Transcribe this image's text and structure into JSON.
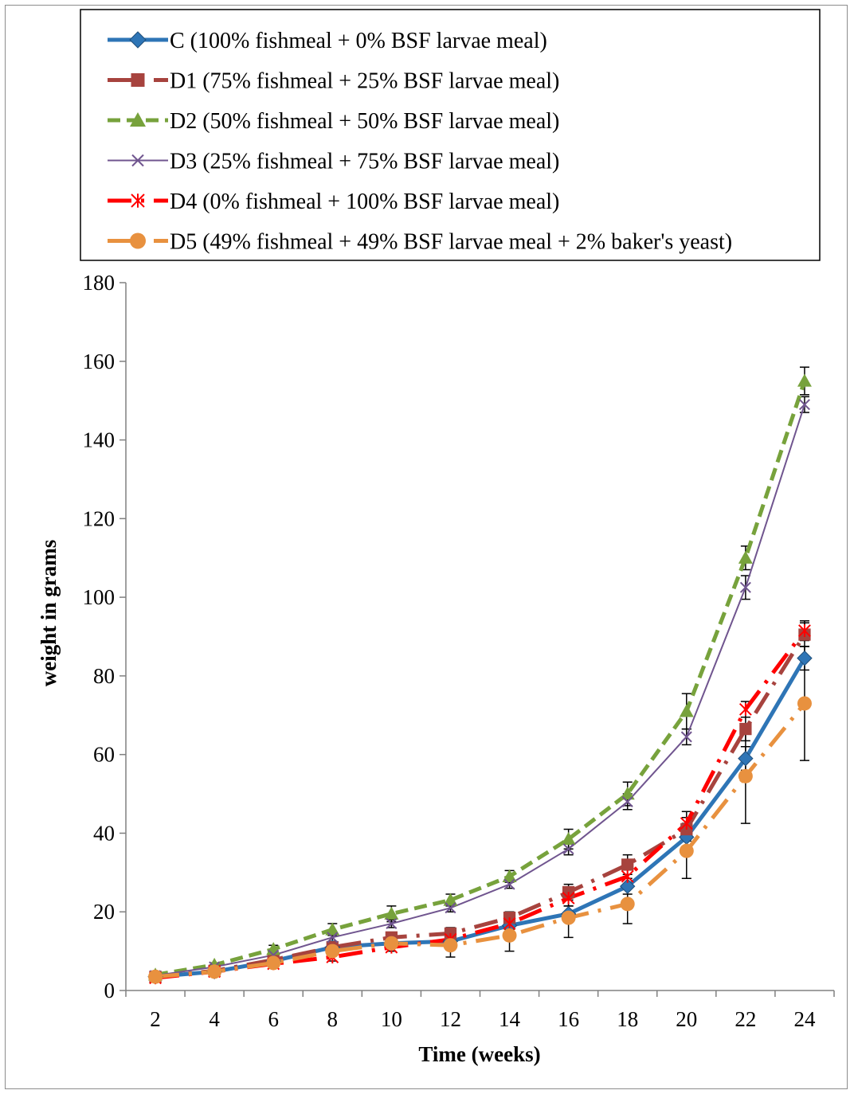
{
  "chart_data": {
    "type": "line",
    "title": "",
    "xlabel": "Time (weeks)",
    "ylabel": "weight in grams",
    "x": [
      2,
      4,
      6,
      8,
      10,
      12,
      14,
      16,
      18,
      20,
      22,
      24
    ],
    "ylim": [
      0,
      180
    ],
    "yticks": [
      0,
      20,
      40,
      60,
      80,
      100,
      120,
      140,
      160,
      180
    ],
    "grid": false,
    "legend_position": "top",
    "series": [
      {
        "name": "C (100% fishmeal + 0% BSF larvae meal)",
        "color": "#2e75b6",
        "marker": "diamond",
        "dash": "solid",
        "values": [
          3.5,
          4.8,
          7.5,
          11.0,
          12.0,
          12.5,
          16.5,
          19.5,
          26.5,
          39.0,
          59.0,
          84.5
        ],
        "error": [
          0.5,
          0.5,
          0.5,
          1.0,
          1.0,
          1.0,
          1.5,
          2.0,
          2.0,
          3.0,
          3.0,
          3.0
        ]
      },
      {
        "name": "D1 (75% fishmeal + 25% BSF larvae meal)",
        "color": "#a7433e",
        "marker": "square",
        "dash": "long-dash-dot",
        "values": [
          3.5,
          5.0,
          7.8,
          11.0,
          13.5,
          14.5,
          18.5,
          25.0,
          32.0,
          41.0,
          66.5,
          90.5
        ],
        "error": [
          0.5,
          0.5,
          0.5,
          1.0,
          1.0,
          1.5,
          1.5,
          2.0,
          2.5,
          3.0,
          3.0,
          3.0
        ]
      },
      {
        "name": "D2 (50% fishmeal + 50% BSF larvae meal)",
        "color": "#77a23c",
        "marker": "triangle",
        "dash": "dashed",
        "values": [
          4.0,
          6.5,
          10.5,
          15.5,
          19.5,
          23.0,
          29.0,
          38.5,
          50.0,
          71.0,
          110.0,
          155.0
        ],
        "error": [
          0.5,
          0.5,
          1.0,
          1.5,
          2.0,
          1.5,
          1.5,
          2.5,
          3.0,
          4.5,
          3.0,
          3.5
        ]
      },
      {
        "name": "D3 (25% fishmeal + 75% BSF larvae meal)",
        "color": "#70558f",
        "marker": "x",
        "dash": "solid-thin",
        "values": [
          3.8,
          6.0,
          9.0,
          13.5,
          17.0,
          21.0,
          27.0,
          36.0,
          48.0,
          64.5,
          102.5,
          149.0
        ],
        "error": [
          0.5,
          0.5,
          0.5,
          1.0,
          1.0,
          1.0,
          1.0,
          1.5,
          2.0,
          2.0,
          3.0,
          2.0
        ]
      },
      {
        "name": "D4 (0% fishmeal + 100% BSF larvae meal)",
        "color": "#ff0000",
        "marker": "star",
        "dash": "long-dash-dot",
        "values": [
          3.2,
          4.8,
          6.8,
          8.5,
          11.0,
          13.0,
          17.0,
          23.5,
          29.0,
          42.5,
          71.5,
          91.5
        ],
        "error": [
          0.5,
          0.5,
          0.5,
          1.0,
          1.0,
          1.0,
          1.5,
          2.0,
          2.0,
          3.0,
          2.0,
          2.5
        ]
      },
      {
        "name": "D5 (49% fishmeal + 49% BSF larvae meal + 2% baker's yeast)",
        "color": "#e8913f",
        "marker": "circle",
        "dash": "long-dash-dot",
        "values": [
          3.5,
          4.8,
          7.0,
          10.0,
          12.0,
          11.5,
          14.0,
          18.5,
          22.0,
          35.5,
          54.5,
          73.0
        ],
        "error": [
          0.5,
          0.5,
          0.5,
          1.0,
          1.0,
          3.0,
          4.0,
          5.0,
          5.0,
          7.0,
          12.0,
          14.5
        ]
      }
    ]
  }
}
